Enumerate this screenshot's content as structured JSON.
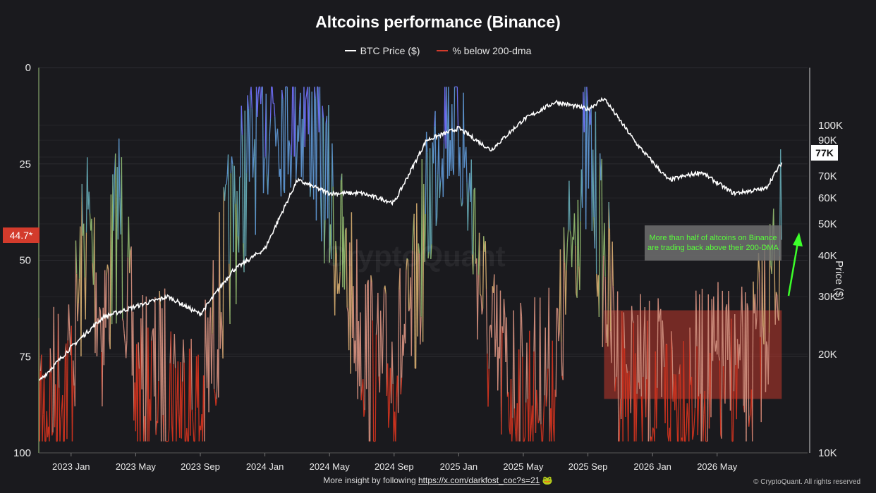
{
  "chart_data": {
    "type": "line",
    "title": "Altcoins performance (Binance)",
    "legend_placement": "top-center",
    "grid": true,
    "x_ticks": [
      "2023 Jan",
      "2023 May",
      "2023 Sep",
      "2024 Jan",
      "2024 May",
      "2024 Sep",
      "2025 Jan",
      "2025 May",
      "2025 Sep",
      "2026 Jan",
      "2026 May"
    ],
    "y_left": {
      "label": "",
      "ticks": [
        "0",
        "25",
        "50",
        "75",
        "100"
      ],
      "range": [
        0,
        100
      ],
      "inverted": true
    },
    "y_right": {
      "label": "Price ($)",
      "scale": "log",
      "range": [
        10000,
        150000
      ],
      "ticks": [
        "100K",
        "90K",
        "80K",
        "70K",
        "60K",
        "50K",
        "40K",
        "30K",
        "20K",
        "10K"
      ]
    },
    "series": [
      {
        "name": "BTC Price ($)",
        "color": "#ffffff",
        "axis": "right",
        "x": [
          "2022-11",
          "2023-01",
          "2023-03",
          "2023-05",
          "2023-07",
          "2023-09",
          "2023-11",
          "2024-01",
          "2024-03",
          "2024-05",
          "2024-07",
          "2024-09",
          "2024-11",
          "2025-01",
          "2025-03",
          "2025-05",
          "2025-07",
          "2025-09",
          "2025-10",
          "2025-12",
          "2026-02",
          "2026-04",
          "2026-06",
          "2026-08",
          "2026-09"
        ],
        "values": [
          16500,
          21000,
          26000,
          28000,
          30000,
          26500,
          36000,
          42000,
          68000,
          62000,
          62000,
          58000,
          90000,
          98000,
          84000,
          104000,
          118000,
          112000,
          121000,
          88000,
          68000,
          72000,
          62000,
          64000,
          77000
        ]
      },
      {
        "name": "% below 200-dma",
        "color": "#d33b2c",
        "axis": "left",
        "x": [
          "2022-11",
          "2023-01",
          "2023-02",
          "2023-03",
          "2023-04",
          "2023-05",
          "2023-07",
          "2023-09",
          "2023-11",
          "2024-01",
          "2024-03",
          "2024-04",
          "2024-06",
          "2024-08",
          "2024-10",
          "2024-12",
          "2025-01",
          "2025-03",
          "2025-05",
          "2025-07",
          "2025-08",
          "2025-09",
          "2025-11",
          "2026-01",
          "2026-03",
          "2026-05",
          "2026-07",
          "2026-09"
        ],
        "values": [
          90,
          78,
          40,
          68,
          35,
          85,
          80,
          92,
          40,
          10,
          8,
          15,
          55,
          82,
          70,
          10,
          12,
          75,
          85,
          80,
          45,
          22,
          80,
          85,
          84,
          80,
          82,
          44.7
        ]
      }
    ],
    "current_values": {
      "pct_below": "44.7*",
      "btc_price": "77K"
    },
    "annotation": "More than half of altcoins on Binance are trading back above their 200-DMA",
    "highlight_box": {
      "x": [
        "2025-10",
        "2026-09"
      ],
      "y_pct": [
        63,
        86
      ],
      "color": "#c0392b"
    }
  },
  "watermark": "CryptoQuant",
  "footer": {
    "text": "More insight by following ",
    "link": "https://x.com/darkfost_coc?s=21",
    "emoji": "🐸"
  },
  "copyright": "© CryptoQuant. All rights reserved"
}
